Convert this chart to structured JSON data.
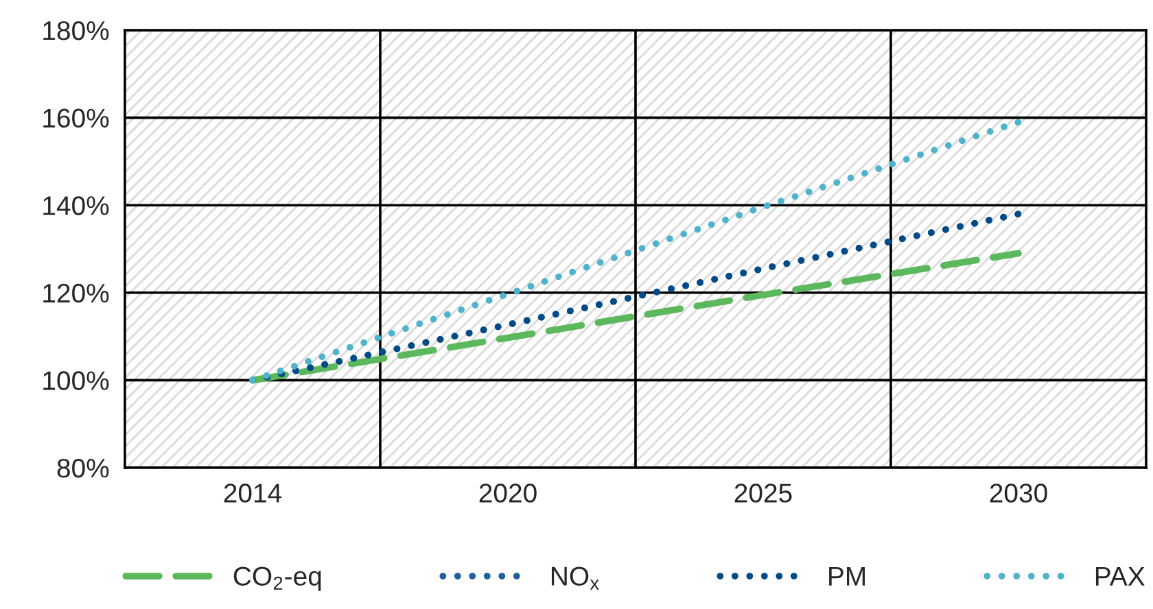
{
  "chart_data": {
    "type": "line",
    "categories": [
      "2014",
      "2020",
      "2025",
      "2030"
    ],
    "series": [
      {
        "name": "CO$_{2}$-eq",
        "color": "#5cb85c",
        "line_style": "dashed",
        "values": [
          100,
          109.7,
          119.5,
          129
        ]
      },
      {
        "name": "NO$_{x}$",
        "color": "#1f5f9f",
        "line_style": "dotted",
        "values": [
          100,
          112.7,
          125.5,
          138
        ]
      },
      {
        "name": "PM",
        "color": "#004b87",
        "line_style": "dotted",
        "values": [
          100,
          112.7,
          125.5,
          138
        ]
      },
      {
        "name": "PAX",
        "color": "#4fb3cc",
        "line_style": "dotted",
        "values": [
          100,
          119.7,
          139.6,
          159
        ]
      }
    ],
    "ylim": [
      80,
      180
    ],
    "yticks": [
      {
        "value": 80,
        "label": "80%"
      },
      {
        "value": 100,
        "label": "100%"
      },
      {
        "value": 120,
        "label": "120%"
      },
      {
        "value": 140,
        "label": "140%"
      },
      {
        "value": 160,
        "label": "160%"
      },
      {
        "value": 180,
        "label": "180%"
      }
    ],
    "grid": true,
    "legend": "bottom",
    "marker": "none"
  }
}
